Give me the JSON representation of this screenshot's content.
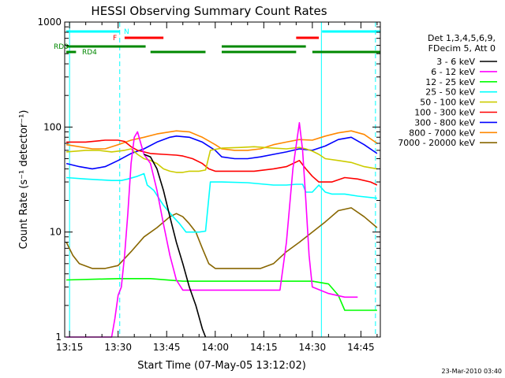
{
  "chart_data": {
    "type": "line",
    "title": "HESSI Observing Summary Count Rates",
    "xlabel": "Start Time (07-May-05 13:12:02)",
    "ylabel": "Count Rate (s⁻¹ detector⁻¹)",
    "xlim_minutes": [
      13.5,
      111.0
    ],
    "ylim": [
      1,
      1000
    ],
    "y_scale": "log",
    "x_ticks": [
      {
        "minute": 15,
        "label": "13:15"
      },
      {
        "minute": 30,
        "label": "13:30"
      },
      {
        "minute": 45,
        "label": "13:45"
      },
      {
        "minute": 60,
        "label": "14:00"
      },
      {
        "minute": 75,
        "label": "14:15"
      },
      {
        "minute": 90,
        "label": "14:30"
      },
      {
        "minute": 105,
        "label": "14:45"
      }
    ],
    "y_ticks": [
      {
        "value": 1,
        "label": "1"
      },
      {
        "value": 10,
        "label": "10"
      },
      {
        "value": 100,
        "label": "100"
      },
      {
        "value": 1000,
        "label": "1000"
      }
    ],
    "legend_header": [
      "Det 1,3,4,5,6,9,",
      "FDecim 5, Att 0"
    ],
    "series": [
      {
        "name": "3 - 6 keV",
        "color": "#000000",
        "points": [
          [
            38,
            55
          ],
          [
            40,
            52
          ],
          [
            42,
            40
          ],
          [
            44,
            25
          ],
          [
            46,
            14
          ],
          [
            48,
            8
          ],
          [
            50,
            5
          ],
          [
            52,
            3
          ],
          [
            54,
            2
          ],
          [
            56,
            1.2
          ],
          [
            57,
            1
          ]
        ]
      },
      {
        "name": "6 - 12 keV",
        "color": "#ff00ff",
        "points": [
          [
            14,
            1
          ],
          [
            28,
            1
          ],
          [
            29,
            1.5
          ],
          [
            30,
            2.5
          ],
          [
            31,
            3
          ],
          [
            32,
            6
          ],
          [
            33,
            15
          ],
          [
            34,
            45
          ],
          [
            35,
            80
          ],
          [
            36,
            90
          ],
          [
            37,
            70
          ],
          [
            38,
            55
          ],
          [
            40,
            45
          ],
          [
            42,
            25
          ],
          [
            44,
            12
          ],
          [
            46,
            6
          ],
          [
            48,
            3.5
          ],
          [
            50,
            2.8
          ],
          [
            60,
            2.8
          ],
          [
            70,
            2.8
          ],
          [
            80,
            2.8
          ],
          [
            82,
            8
          ],
          [
            84,
            40
          ],
          [
            86,
            110
          ],
          [
            87,
            60
          ],
          [
            88,
            20
          ],
          [
            89,
            6
          ],
          [
            90,
            3
          ],
          [
            95,
            2.6
          ],
          [
            100,
            2.4
          ],
          [
            104,
            2.4
          ]
        ]
      },
      {
        "name": "12 - 25 keV",
        "color": "#00ff00",
        "points": [
          [
            14,
            3.5
          ],
          [
            30,
            3.6
          ],
          [
            34,
            3.6
          ],
          [
            40,
            3.6
          ],
          [
            50,
            3.4
          ],
          [
            60,
            3.4
          ],
          [
            70,
            3.4
          ],
          [
            80,
            3.4
          ],
          [
            84,
            3.4
          ],
          [
            90,
            3.4
          ],
          [
            95,
            3.2
          ],
          [
            98,
            2.5
          ],
          [
            100,
            1.8
          ],
          [
            110,
            1.8
          ]
        ]
      },
      {
        "name": "25 - 50 keV",
        "color": "#00ffff",
        "points": [
          [
            14,
            33
          ],
          [
            20,
            32
          ],
          [
            28,
            31
          ],
          [
            31,
            31
          ],
          [
            33,
            32
          ],
          [
            36,
            34
          ],
          [
            38,
            36
          ],
          [
            39,
            28
          ],
          [
            41,
            25
          ],
          [
            44,
            18
          ],
          [
            47,
            14
          ],
          [
            49,
            12
          ],
          [
            51,
            10
          ],
          [
            53,
            10
          ],
          [
            55,
            10
          ],
          [
            57,
            10.2
          ],
          [
            58.5,
            30
          ],
          [
            62,
            30
          ],
          [
            70,
            29.5
          ],
          [
            78,
            28
          ],
          [
            82,
            28
          ],
          [
            85,
            28.5
          ],
          [
            87,
            28.5
          ],
          [
            88,
            24
          ],
          [
            90,
            24
          ],
          [
            92,
            28
          ],
          [
            94,
            24
          ],
          [
            96,
            23
          ],
          [
            100,
            23
          ],
          [
            104,
            22
          ],
          [
            110,
            21
          ]
        ]
      },
      {
        "name": "50 - 100 keV",
        "color": "#cccc00",
        "points": [
          [
            14,
            58
          ],
          [
            20,
            60
          ],
          [
            24,
            60
          ],
          [
            28,
            58
          ],
          [
            32,
            60
          ],
          [
            34,
            62
          ],
          [
            36,
            55
          ],
          [
            38,
            50
          ],
          [
            40,
            48
          ],
          [
            42,
            45
          ],
          [
            44,
            40
          ],
          [
            46,
            38
          ],
          [
            48,
            37
          ],
          [
            50,
            37
          ],
          [
            52,
            38
          ],
          [
            55,
            38
          ],
          [
            57,
            39
          ],
          [
            58.5,
            60
          ],
          [
            62,
            63
          ],
          [
            68,
            64
          ],
          [
            72,
            65
          ],
          [
            78,
            63
          ],
          [
            82,
            62
          ],
          [
            86,
            64
          ],
          [
            88,
            62
          ],
          [
            90,
            59
          ],
          [
            92,
            55
          ],
          [
            94,
            50
          ],
          [
            98,
            48
          ],
          [
            102,
            46
          ],
          [
            106,
            42
          ],
          [
            110,
            40
          ]
        ]
      },
      {
        "name": "100 - 300 keV",
        "color": "#ff0000",
        "points": [
          [
            14,
            72
          ],
          [
            20,
            72
          ],
          [
            26,
            75
          ],
          [
            30,
            75
          ],
          [
            32,
            73
          ],
          [
            34,
            65
          ],
          [
            36,
            60
          ],
          [
            38,
            58
          ],
          [
            40,
            56
          ],
          [
            44,
            55
          ],
          [
            48,
            54
          ],
          [
            50,
            53
          ],
          [
            53,
            50
          ],
          [
            56,
            45
          ],
          [
            58,
            40
          ],
          [
            60,
            38
          ],
          [
            66,
            38
          ],
          [
            72,
            38
          ],
          [
            78,
            40
          ],
          [
            82,
            42
          ],
          [
            86,
            48
          ],
          [
            88,
            40
          ],
          [
            90,
            34
          ],
          [
            92,
            30
          ],
          [
            96,
            30
          ],
          [
            100,
            33
          ],
          [
            104,
            32
          ],
          [
            108,
            30
          ],
          [
            110,
            28
          ]
        ]
      },
      {
        "name": "300 - 800 keV",
        "color": "#0000ff",
        "points": [
          [
            14,
            45
          ],
          [
            18,
            42
          ],
          [
            22,
            40
          ],
          [
            26,
            42
          ],
          [
            30,
            48
          ],
          [
            34,
            56
          ],
          [
            38,
            62
          ],
          [
            42,
            72
          ],
          [
            46,
            80
          ],
          [
            48,
            82
          ],
          [
            52,
            80
          ],
          [
            56,
            72
          ],
          [
            60,
            60
          ],
          [
            62,
            52
          ],
          [
            66,
            50
          ],
          [
            70,
            50
          ],
          [
            74,
            52
          ],
          [
            78,
            55
          ],
          [
            82,
            58
          ],
          [
            86,
            62
          ],
          [
            90,
            60
          ],
          [
            94,
            66
          ],
          [
            98,
            76
          ],
          [
            102,
            80
          ],
          [
            106,
            68
          ],
          [
            110,
            56
          ]
        ]
      },
      {
        "name": "800 - 7000 keV",
        "color": "#ff8800",
        "points": [
          [
            14,
            68
          ],
          [
            18,
            65
          ],
          [
            22,
            62
          ],
          [
            26,
            62
          ],
          [
            30,
            68
          ],
          [
            34,
            75
          ],
          [
            38,
            80
          ],
          [
            42,
            86
          ],
          [
            46,
            90
          ],
          [
            48,
            92
          ],
          [
            52,
            90
          ],
          [
            56,
            80
          ],
          [
            60,
            68
          ],
          [
            62,
            62
          ],
          [
            66,
            60
          ],
          [
            70,
            60
          ],
          [
            74,
            62
          ],
          [
            78,
            68
          ],
          [
            82,
            72
          ],
          [
            86,
            76
          ],
          [
            90,
            75
          ],
          [
            94,
            82
          ],
          [
            98,
            88
          ],
          [
            102,
            92
          ],
          [
            106,
            85
          ],
          [
            110,
            70
          ]
        ]
      },
      {
        "name": "7000 - 20000 keV",
        "color": "#886600",
        "points": [
          [
            14,
            8
          ],
          [
            16,
            6
          ],
          [
            18,
            5
          ],
          [
            22,
            4.5
          ],
          [
            26,
            4.5
          ],
          [
            30,
            4.8
          ],
          [
            34,
            6.5
          ],
          [
            38,
            9
          ],
          [
            42,
            11
          ],
          [
            46,
            14
          ],
          [
            48,
            15
          ],
          [
            50,
            14
          ],
          [
            52,
            12
          ],
          [
            54,
            10
          ],
          [
            56,
            7
          ],
          [
            58,
            5
          ],
          [
            60,
            4.5
          ],
          [
            64,
            4.5
          ],
          [
            70,
            4.5
          ],
          [
            74,
            4.5
          ],
          [
            78,
            5
          ],
          [
            82,
            6.5
          ],
          [
            86,
            8
          ],
          [
            90,
            10
          ],
          [
            94,
            12.5
          ],
          [
            98,
            16
          ],
          [
            102,
            17
          ],
          [
            106,
            14
          ],
          [
            110,
            11
          ]
        ]
      }
    ],
    "flag_bars": [
      {
        "label": "N",
        "color": "#00ffff",
        "segments": [
          [
            14,
            30.5
          ],
          [
            93,
            111
          ]
        ]
      },
      {
        "label": "F",
        "color": "#ff0000",
        "segments": [
          [
            32,
            44
          ],
          [
            85,
            92
          ]
        ]
      },
      {
        "label": "RD0",
        "color": "#008800",
        "segments": [
          [
            14,
            38.5
          ],
          [
            62,
            88
          ]
        ]
      },
      {
        "label": "RD4",
        "color": "#008800",
        "segments": [
          [
            14,
            17
          ],
          [
            40,
            57
          ],
          [
            62,
            85
          ],
          [
            90,
            111
          ]
        ]
      }
    ],
    "vertical_markers": [
      {
        "minute": 15,
        "color": "#00ffff",
        "style": "solid"
      },
      {
        "minute": 30.5,
        "color": "#00ffff",
        "style": "dashed"
      },
      {
        "minute": 92.8,
        "color": "#00ffff",
        "style": "solid"
      },
      {
        "minute": 109.5,
        "color": "#00ffff",
        "style": "dashed"
      }
    ],
    "footer": "23-Mar-2010 03:40"
  }
}
